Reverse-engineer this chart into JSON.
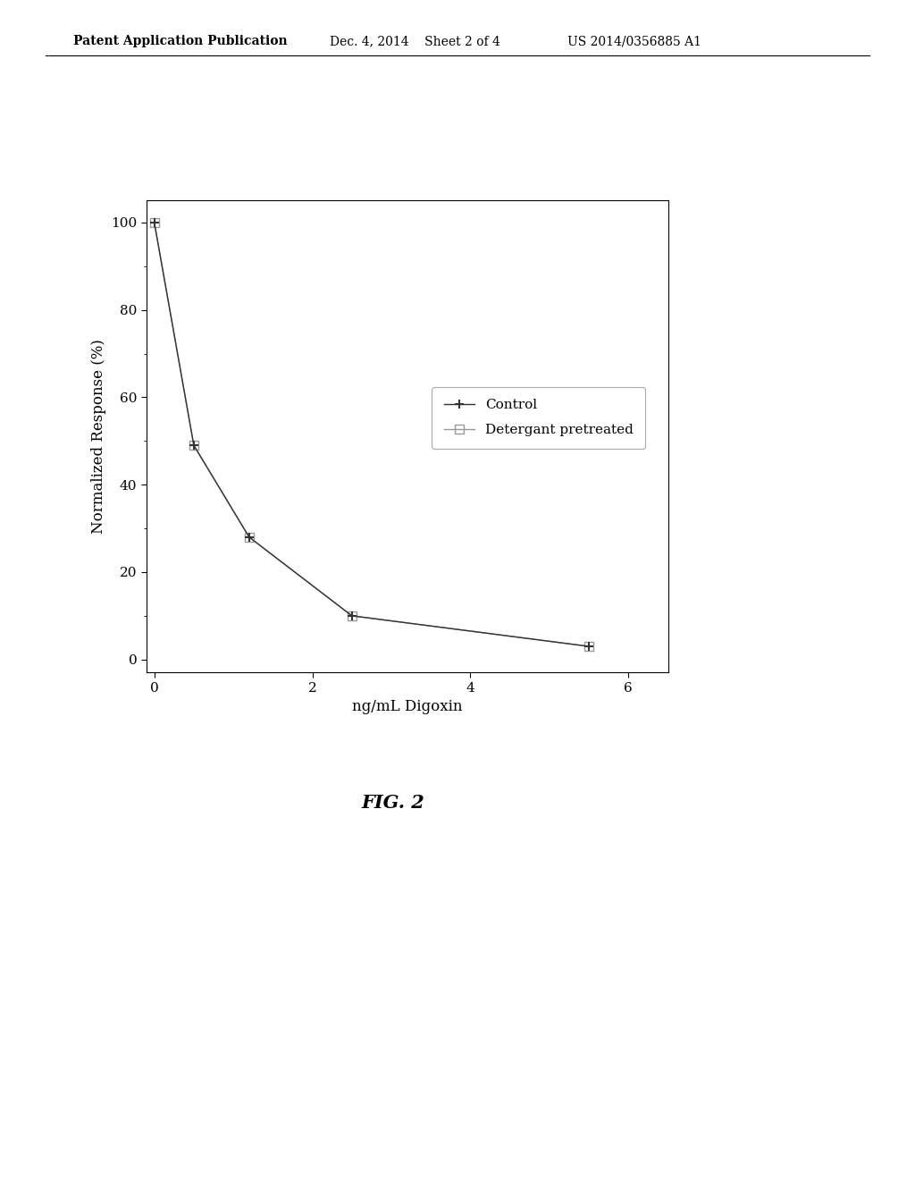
{
  "control_x": [
    0,
    0.5,
    1.2,
    2.5,
    5.5
  ],
  "control_y": [
    100,
    49,
    28,
    10,
    3
  ],
  "detergant_x": [
    0,
    0.5,
    1.2,
    2.5,
    5.5
  ],
  "detergant_y": [
    100,
    49,
    28,
    10,
    3
  ],
  "control_color": "#333333",
  "detergant_color": "#999999",
  "xlabel": "ng/mL Digoxin",
  "ylabel": "Normalized Response (%)",
  "xlim": [
    -0.1,
    6.5
  ],
  "ylim": [
    -3,
    105
  ],
  "xticks": [
    0,
    2,
    4,
    6
  ],
  "yticks": [
    0,
    20,
    40,
    60,
    80,
    100
  ],
  "legend_label_control": "Control",
  "legend_label_detergant": "Detergant pretreated",
  "fig_caption": "FIG. 2",
  "header_left": "Patent Application Publication",
  "header_center": "Dec. 4, 2014    Sheet 2 of 4",
  "header_right": "US 2014/0356885 A1",
  "background_color": "#ffffff",
  "line_width": 1.0,
  "marker_size": 7
}
